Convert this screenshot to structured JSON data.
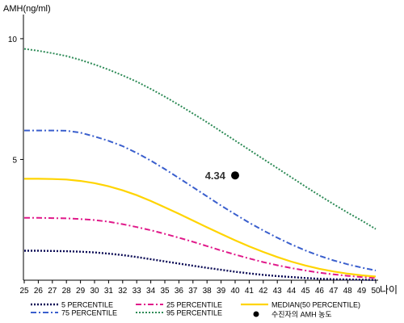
{
  "chart_data": {
    "type": "line",
    "title": "",
    "ylabel": "AMH(ng/ml)",
    "xlabel": "나이",
    "xlim": [
      25,
      50
    ],
    "ylim": [
      0,
      11
    ],
    "x": [
      25,
      26,
      27,
      28,
      29,
      30,
      31,
      32,
      33,
      34,
      35,
      36,
      37,
      38,
      39,
      40,
      41,
      42,
      43,
      44,
      45,
      46,
      47,
      48,
      49,
      50
    ],
    "x_ticks": [
      "25",
      "26",
      "27",
      "28",
      "29",
      "30",
      "31",
      "32",
      "33",
      "34",
      "35",
      "36",
      "37",
      "38",
      "39",
      "40",
      "41",
      "42",
      "43",
      "44",
      "45",
      "46",
      "47",
      "48",
      "49",
      "50"
    ],
    "y_ticks": [
      {
        "value": 10,
        "label": "10"
      },
      {
        "value": 5,
        "label": "5"
      }
    ],
    "series": [
      {
        "key": "p5",
        "name": "5 PERCENTILE",
        "color": "#0b0b55",
        "dash": "2,2",
        "width": 2.4,
        "values": [
          1.22,
          1.22,
          1.21,
          1.2,
          1.18,
          1.15,
          1.1,
          1.04,
          0.96,
          0.87,
          0.78,
          0.69,
          0.6,
          0.51,
          0.43,
          0.35,
          0.28,
          0.22,
          0.17,
          0.13,
          0.09,
          0.06,
          0.04,
          0.03,
          0.02,
          0.01
        ]
      },
      {
        "key": "p25",
        "name": "25 PERCENTILE",
        "color": "#e0198a",
        "dash": "7,3,2,3",
        "width": 2,
        "values": [
          2.58,
          2.58,
          2.57,
          2.56,
          2.53,
          2.49,
          2.42,
          2.32,
          2.2,
          2.07,
          1.92,
          1.76,
          1.59,
          1.41,
          1.23,
          1.06,
          0.9,
          0.75,
          0.62,
          0.5,
          0.4,
          0.31,
          0.24,
          0.18,
          0.13,
          0.09
        ]
      },
      {
        "key": "p75",
        "name": "75 PERCENTILE",
        "color": "#3a5fcd",
        "dash": "7,3,2,3",
        "width": 2,
        "values": [
          6.2,
          6.2,
          6.2,
          6.19,
          6.11,
          5.95,
          5.77,
          5.55,
          5.27,
          4.95,
          4.6,
          4.23,
          3.85,
          3.47,
          3.09,
          2.73,
          2.38,
          2.06,
          1.76,
          1.48,
          1.23,
          1.01,
          0.82,
          0.66,
          0.52,
          0.4
        ]
      },
      {
        "key": "p95",
        "name": "95 PERCENTILE",
        "color": "#2e8b57",
        "dash": "2,2",
        "width": 2,
        "values": [
          9.58,
          9.5,
          9.4,
          9.28,
          9.12,
          8.93,
          8.72,
          8.48,
          8.22,
          7.92,
          7.6,
          7.26,
          6.9,
          6.54,
          6.16,
          5.78,
          5.4,
          5.02,
          4.64,
          4.26,
          3.88,
          3.51,
          3.15,
          2.8,
          2.47,
          2.12
        ]
      },
      {
        "key": "median",
        "name": "MEDIAN(50 PERCENTILE)",
        "color": "#ffd400",
        "dash": "",
        "width": 2.2,
        "values": [
          4.2,
          4.2,
          4.19,
          4.17,
          4.11,
          4.02,
          3.89,
          3.72,
          3.52,
          3.28,
          3.02,
          2.75,
          2.47,
          2.19,
          1.92,
          1.65,
          1.4,
          1.17,
          0.96,
          0.77,
          0.61,
          0.47,
          0.36,
          0.27,
          0.2,
          0.15
        ]
      }
    ],
    "point": {
      "name": "수진자의 AMH 농도",
      "x": 40,
      "y": 4.34,
      "label": "4.34",
      "color": "#000000"
    },
    "legend_order": [
      "p5",
      "p25",
      "median",
      "p75",
      "p95",
      "point"
    ],
    "legend_position": "bottom",
    "grid": false
  }
}
